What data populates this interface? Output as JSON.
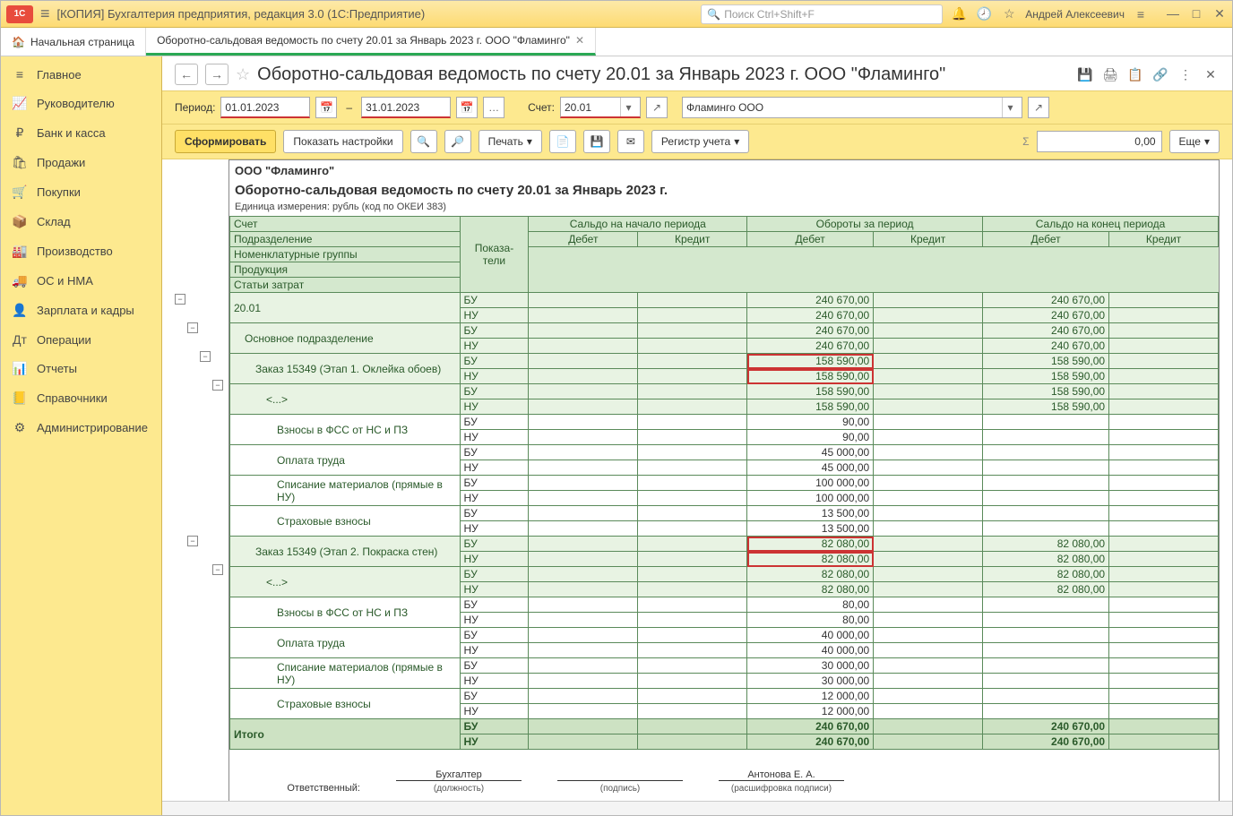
{
  "titlebar": {
    "app_title": "[КОПИЯ] Бухгалтерия предприятия, редакция 3.0  (1С:Предприятие)",
    "search_placeholder": "Поиск Ctrl+Shift+F",
    "user_name": "Андрей Алексеевич"
  },
  "tabs": {
    "home": "Начальная страница",
    "current": "Оборотно-сальдовая ведомость по счету 20.01 за Январь 2023 г. ООО \"Фламинго\""
  },
  "sidebar": [
    {
      "icon": "≡",
      "label": "Главное"
    },
    {
      "icon": "📈",
      "label": "Руководителю"
    },
    {
      "icon": "₽",
      "label": "Банк и касса"
    },
    {
      "icon": "🛍",
      "label": "Продажи"
    },
    {
      "icon": "🛒",
      "label": "Покупки"
    },
    {
      "icon": "📦",
      "label": "Склад"
    },
    {
      "icon": "🏭",
      "label": "Производство"
    },
    {
      "icon": "🚚",
      "label": "ОС и НМА"
    },
    {
      "icon": "👤",
      "label": "Зарплата и кадры"
    },
    {
      "icon": "Дт",
      "label": "Операции"
    },
    {
      "icon": "📊",
      "label": "Отчеты"
    },
    {
      "icon": "📒",
      "label": "Справочники"
    },
    {
      "icon": "⚙",
      "label": "Администрирование"
    }
  ],
  "report_title": "Оборотно-сальдовая ведомость по счету 20.01 за Январь 2023 г. ООО \"Фламинго\"",
  "period": {
    "label": "Период:",
    "from": "01.01.2023",
    "to": "31.01.2023",
    "sep": "–"
  },
  "account": {
    "label": "Счет:",
    "value": "20.01"
  },
  "org": {
    "value": "Фламинго ООО"
  },
  "buttons": {
    "form": "Сформировать",
    "settings": "Показать настройки",
    "print": "Печать",
    "register": "Регистр учета",
    "more": "Еще"
  },
  "sum_display": "0,00",
  "body": {
    "org": "ООО \"Фламинго\"",
    "title": "Оборотно-сальдовая ведомость по счету 20.01 за Январь 2023 г.",
    "unit": "Единица измерения: рубль (код по ОКЕИ 383)"
  },
  "headers": {
    "account": "Счет",
    "indicators": "Показа-\nтели",
    "saldo_start": "Сальдо на начало периода",
    "turnover": "Обороты за период",
    "saldo_end": "Сальдо на конец периода",
    "debit": "Дебет",
    "credit": "Кредит",
    "sub1": "Подразделение",
    "sub2": "Номенклатурные группы",
    "sub3": "Продукция",
    "sub4": "Статьи затрат"
  },
  "rows": [
    {
      "name": "20.01",
      "lvl": 0,
      "cls": "grp",
      "bu_d": "240 670,00",
      "bu_e": "240 670,00",
      "nu_d": "240 670,00",
      "nu_e": "240 670,00"
    },
    {
      "name": "Основное подразделение",
      "lvl": 1,
      "cls": "grp",
      "bu_d": "240 670,00",
      "bu_e": "240 670,00",
      "nu_d": "240 670,00",
      "nu_e": "240 670,00"
    },
    {
      "name": "Заказ 15349 (Этап 1. Оклейка обоев)",
      "lvl": 2,
      "cls": "grp",
      "bu_d": "158 590,00",
      "bu_e": "158 590,00",
      "nu_d": "158 590,00",
      "nu_e": "158 590,00",
      "hl": true
    },
    {
      "name": "<...>",
      "lvl": 3,
      "cls": "grp",
      "bu_d": "158 590,00",
      "bu_e": "158 590,00",
      "nu_d": "158 590,00",
      "nu_e": "158 590,00"
    },
    {
      "name": "Взносы в ФСС от НС и ПЗ",
      "lvl": 4,
      "cls": "",
      "bu_d": "90,00",
      "nu_d": "90,00"
    },
    {
      "name": "Оплата труда",
      "lvl": 4,
      "cls": "",
      "bu_d": "45 000,00",
      "nu_d": "45 000,00"
    },
    {
      "name": "Списание материалов (прямые в НУ)",
      "lvl": 4,
      "cls": "",
      "bu_d": "100 000,00",
      "nu_d": "100 000,00"
    },
    {
      "name": "Страховые взносы",
      "lvl": 4,
      "cls": "",
      "bu_d": "13 500,00",
      "nu_d": "13 500,00"
    },
    {
      "name": "Заказ 15349 (Этап 2. Покраска стен)",
      "lvl": 2,
      "cls": "grp",
      "bu_d": "82 080,00",
      "bu_e": "82 080,00",
      "nu_d": "82 080,00",
      "nu_e": "82 080,00",
      "hl": true
    },
    {
      "name": "<...>",
      "lvl": 3,
      "cls": "grp",
      "bu_d": "82 080,00",
      "bu_e": "82 080,00",
      "nu_d": "82 080,00",
      "nu_e": "82 080,00"
    },
    {
      "name": "Взносы в ФСС от НС и ПЗ",
      "lvl": 4,
      "cls": "",
      "bu_d": "80,00",
      "nu_d": "80,00"
    },
    {
      "name": "Оплата труда",
      "lvl": 4,
      "cls": "",
      "bu_d": "40 000,00",
      "nu_d": "40 000,00"
    },
    {
      "name": "Списание материалов (прямые в НУ)",
      "lvl": 4,
      "cls": "",
      "bu_d": "30 000,00",
      "nu_d": "30 000,00"
    },
    {
      "name": "Страховые взносы",
      "lvl": 4,
      "cls": "",
      "bu_d": "12 000,00",
      "nu_d": "12 000,00"
    }
  ],
  "total": {
    "label": "Итого",
    "bu_d": "240 670,00",
    "bu_e": "240 670,00",
    "nu_d": "240 670,00",
    "nu_e": "240 670,00"
  },
  "signatures": {
    "resp": "Ответственный:",
    "position": "Бухгалтер",
    "position_cap": "(должность)",
    "sign_cap": "(подпись)",
    "name": "Антонова Е. А.",
    "name_cap": "(расшифровка подписи)"
  },
  "colors": {
    "accent": "#fde98f",
    "group": "#e8f3e3",
    "total": "#cde2c3",
    "border": "#5a8a5a",
    "highlight": "#cc3333"
  }
}
